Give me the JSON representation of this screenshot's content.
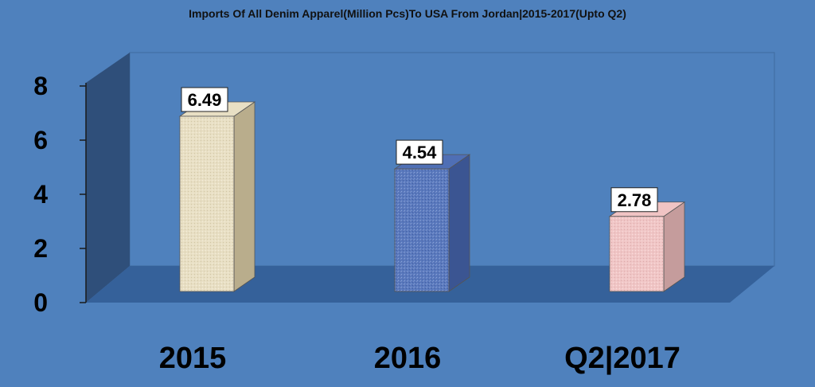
{
  "chart_data": {
    "type": "bar",
    "title": "Imports Of All Denim Apparel(Million Pcs)To USA From Jordan|2015-2017(Upto Q2)",
    "categories": [
      "2015",
      "2016",
      "Q2|2017"
    ],
    "values": [
      6.49,
      4.54,
      2.78
    ],
    "data_labels": [
      "6.49",
      "4.54",
      "2.78"
    ],
    "yticks": [
      "0",
      "2",
      "4",
      "6",
      "8"
    ],
    "ylim": [
      0,
      8
    ],
    "xlabel": "",
    "ylabel": "",
    "grid": false,
    "legend": "none",
    "three_d": true,
    "colors": {
      "background": "#4f81bd",
      "back_wall": "#4f81bd",
      "side_wall": "#2f4f7a",
      "floor": "#35619a",
      "bars": [
        "#e8dfc4",
        "#4f6fb5",
        "#f0c4c4"
      ]
    }
  }
}
